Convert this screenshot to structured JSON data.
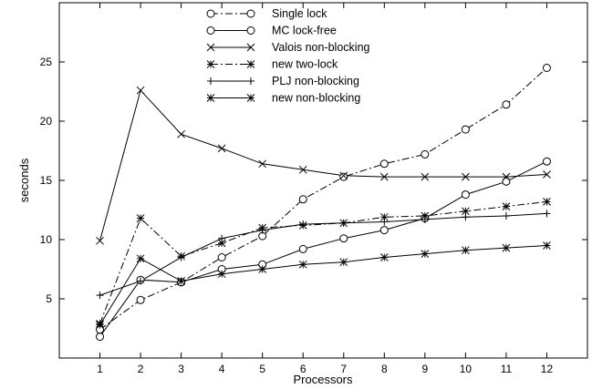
{
  "chart_data": {
    "type": "line",
    "xlabel": "Processors",
    "ylabel": "seconds",
    "x": [
      1,
      2,
      3,
      4,
      5,
      6,
      7,
      8,
      9,
      10,
      11,
      12
    ],
    "xlim": [
      0,
      13
    ],
    "ylim": [
      0,
      30
    ],
    "xticks": [
      1,
      2,
      3,
      4,
      5,
      6,
      7,
      8,
      9,
      10,
      11,
      12
    ],
    "yticks": [
      5,
      10,
      15,
      20,
      25
    ],
    "grid": false,
    "legend_position": "top-center",
    "series": [
      {
        "name": "Single lock",
        "marker": "circle",
        "line": "dashdot",
        "values": [
          2.4,
          4.9,
          6.4,
          8.5,
          10.3,
          13.4,
          15.3,
          16.4,
          17.2,
          19.3,
          21.4,
          24.5
        ]
      },
      {
        "name": "MC lock-free",
        "marker": "circle",
        "line": "solid",
        "values": [
          1.8,
          6.6,
          6.4,
          7.5,
          7.9,
          9.2,
          10.1,
          10.8,
          11.8,
          13.8,
          14.9,
          16.6
        ]
      },
      {
        "name": "Valois non-blocking",
        "marker": "x",
        "line": "solid",
        "values": [
          9.9,
          22.6,
          18.9,
          17.7,
          16.4,
          15.9,
          15.4,
          15.3,
          15.3,
          15.3,
          15.3,
          15.5
        ]
      },
      {
        "name": "new two-lock",
        "marker": "star",
        "line": "dashdot",
        "values": [
          2.9,
          11.8,
          8.6,
          9.7,
          11.0,
          11.2,
          11.4,
          11.9,
          12.0,
          12.4,
          12.8,
          13.2
        ]
      },
      {
        "name": "PLJ non-blocking",
        "marker": "plus",
        "line": "solid",
        "values": [
          5.3,
          6.5,
          8.5,
          10.1,
          10.8,
          11.3,
          11.4,
          11.5,
          11.7,
          11.9,
          12.0,
          12.2
        ]
      },
      {
        "name": "new non-blocking",
        "marker": "star",
        "line": "solid",
        "values": [
          2.8,
          8.4,
          6.5,
          7.1,
          7.5,
          7.9,
          8.1,
          8.5,
          8.8,
          9.1,
          9.3,
          9.5
        ]
      }
    ]
  }
}
